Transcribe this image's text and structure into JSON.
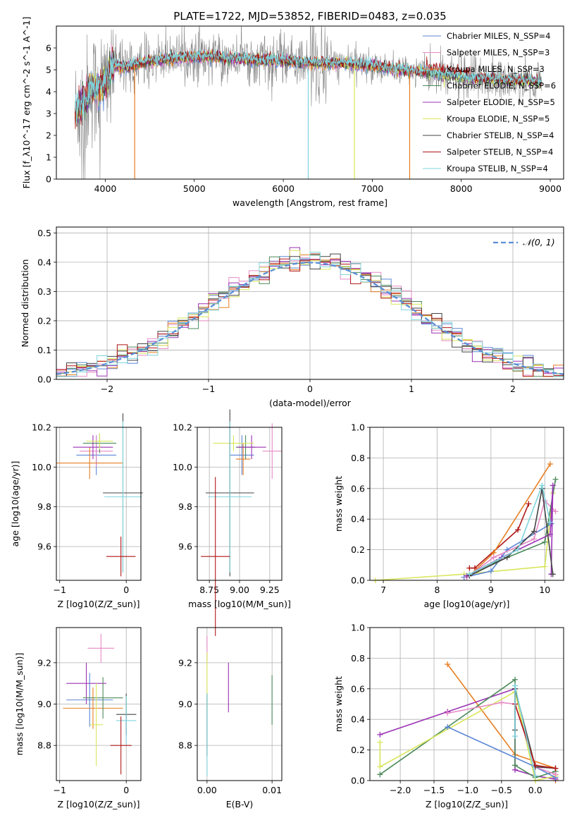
{
  "figure_title": "PLATE=1722, MJD=53852, FIBERID=0483, z=0.035",
  "colors": {
    "chabrier_miles": "#5b86d6",
    "salpeter_miles": "#e68ac5",
    "kroupa_miles": "#e67e22",
    "chabrier_elodie": "#4c8a5a",
    "salpeter_elodie": "#9b32b4",
    "kroupa_elodie": "#d8e65a",
    "chabrier_stelib": "#444444",
    "salpeter_stelib": "#b01515",
    "kroupa_stelib": "#7fd4dc",
    "data": "#888888",
    "gaussian": "#5b8fd6"
  },
  "chart_data": [
    {
      "type": "line",
      "xlabel": "wavelength [Angstrom, rest frame]",
      "ylabel": "Flux [f_λ10^-17 erg cm^-2 s^-1 A^-1]",
      "xlim": [
        3450,
        9150
      ],
      "ylim": [
        0,
        7
      ],
      "x_ticks": [
        "4000",
        "5000",
        "6000",
        "7000",
        "8000",
        "9000"
      ],
      "y_ticks": [
        "0",
        "1",
        "2",
        "3",
        "4",
        "5",
        "6"
      ],
      "grid": false,
      "legend_position": "top-right",
      "legend": [
        {
          "label": "Chabrier MILES, N_SSP=4",
          "color_key": "chabrier_miles"
        },
        {
          "label": "Salpeter MILES, N_SSP=3",
          "color_key": "salpeter_miles"
        },
        {
          "label": "Kroupa MILES, N_SSP=3",
          "color_key": "kroupa_miles"
        },
        {
          "label": "Chabrier ELODIE, N_SSP=6",
          "color_key": "chabrier_elodie"
        },
        {
          "label": "Salpeter ELODIE, N_SSP=5",
          "color_key": "salpeter_elodie"
        },
        {
          "label": "Kroupa ELODIE, N_SSP=5",
          "color_key": "kroupa_elodie"
        },
        {
          "label": "Chabrier STELIB, N_SSP=4",
          "color_key": "chabrier_stelib"
        },
        {
          "label": "Salpeter STELIB, N_SSP=4",
          "color_key": "salpeter_stelib"
        },
        {
          "label": "Kroupa STELIB, N_SSP=4",
          "color_key": "kroupa_stelib"
        }
      ],
      "continuum": {
        "x": [
          3650,
          3700,
          3750,
          3800,
          3850,
          3900,
          3950,
          4000,
          4050,
          4100,
          4200,
          4300,
          4400,
          4500,
          4700,
          5000,
          5200,
          5500,
          5800,
          6000,
          6300,
          6600,
          7000,
          7300,
          7500,
          7700,
          7900,
          8100,
          8300,
          8500,
          8700,
          8900
        ],
        "y": [
          2.9,
          3.2,
          3.5,
          3.8,
          4.2,
          4.1,
          4.3,
          4.4,
          5.0,
          5.2,
          5.1,
          5.2,
          5.3,
          5.4,
          5.5,
          5.6,
          5.6,
          5.5,
          5.4,
          5.4,
          5.3,
          5.3,
          5.2,
          5.0,
          4.9,
          4.8,
          4.7,
          4.6,
          4.6,
          4.5,
          4.5,
          4.4
        ]
      },
      "model_gaps": [
        {
          "series": "kroupa_stelib",
          "x": 6280
        },
        {
          "series": "kroupa_elodie",
          "x": 6800
        },
        {
          "series": "kroupa_miles",
          "x": 7420
        },
        {
          "series": "kroupa_miles",
          "x": 4330
        }
      ]
    },
    {
      "type": "bar",
      "xlabel": "(data-model)/error",
      "ylabel": "Normed distribution",
      "xlim": [
        -2.5,
        2.5
      ],
      "ylim": [
        0,
        0.52
      ],
      "x_ticks": [
        "−2",
        "−1",
        "0",
        "1",
        "2"
      ],
      "y_ticks": [
        "0.0",
        "0.1",
        "0.2",
        "0.3",
        "0.4",
        "0.5"
      ],
      "grid": true,
      "legend_position": "top-right",
      "legend": [
        {
          "label": "𝒩(0, 1)",
          "color_key": "gaussian"
        }
      ],
      "bin_width": 0.1
    },
    {
      "type": "scatter",
      "xlabel": "Z [log10(Z/Z_sun)]",
      "ylabel": "age  [log10(age/yr)]",
      "xlim": [
        -1.05,
        0.22
      ],
      "ylim": [
        9.43,
        10.2
      ],
      "x_ticks": [
        "−1",
        "0"
      ],
      "y_ticks": [
        "9.6",
        "9.8",
        "10.0",
        "10.2"
      ],
      "grid": true,
      "errorbars": [
        {
          "key": "chabrier_miles",
          "x": -0.45,
          "xerr": 0.3,
          "y": 10.06,
          "yerr": 0.1
        },
        {
          "key": "salpeter_miles",
          "x": -0.45,
          "xerr": 0.25,
          "y": 10.08,
          "yerr": 0.08
        },
        {
          "key": "kroupa_miles",
          "x": -0.55,
          "xerr": 0.5,
          "y": 10.02,
          "yerr": 0.08
        },
        {
          "key": "chabrier_elodie",
          "x": -0.4,
          "xerr": 0.25,
          "y": 10.12,
          "yerr": 0.05
        },
        {
          "key": "salpeter_elodie",
          "x": -0.5,
          "xerr": 0.3,
          "y": 10.1,
          "yerr": 0.06
        },
        {
          "key": "kroupa_elodie",
          "x": -0.4,
          "xerr": 0.2,
          "y": 10.13,
          "yerr": 0.04
        },
        {
          "key": "chabrier_stelib",
          "x": -0.05,
          "xerr": 0.3,
          "y": 9.87,
          "yerr": 0.4
        },
        {
          "key": "kroupa_stelib",
          "x": -0.05,
          "xerr": 0.28,
          "y": 9.85,
          "yerr": 0.38
        },
        {
          "key": "salpeter_stelib",
          "x": -0.08,
          "xerr": 0.22,
          "y": 9.55,
          "yerr": 0.1
        }
      ]
    },
    {
      "type": "scatter",
      "xlabel": "mass [log10(M/M_sun)]",
      "ylabel": "",
      "xlim": [
        8.65,
        9.35
      ],
      "ylim": [
        9.43,
        10.2
      ],
      "x_ticks": [
        "8.75",
        "9.00",
        "9.25"
      ],
      "y_ticks": [
        "9.6",
        "9.8",
        "10.0",
        "10.2"
      ],
      "grid": true,
      "errorbars": [
        {
          "key": "chabrier_miles",
          "x": 9.02,
          "xerr": 0.1,
          "y": 10.06,
          "yerr": 0.1
        },
        {
          "key": "salpeter_miles",
          "x": 9.27,
          "xerr": 0.08,
          "y": 10.08,
          "yerr": 0.14
        },
        {
          "key": "kroupa_miles",
          "x": 9.03,
          "xerr": 0.06,
          "y": 10.04,
          "yerr": 0.08
        },
        {
          "key": "chabrier_elodie",
          "x": 9.05,
          "xerr": 0.08,
          "y": 10.1,
          "yerr": 0.06
        },
        {
          "key": "salpeter_elodie",
          "x": 9.1,
          "xerr": 0.12,
          "y": 10.1,
          "yerr": 0.06
        },
        {
          "key": "kroupa_elodie",
          "x": 8.95,
          "xerr": 0.17,
          "y": 10.12,
          "yerr": 0.04
        },
        {
          "key": "chabrier_stelib",
          "x": 8.92,
          "xerr": 0.2,
          "y": 9.87,
          "yerr": 0.42
        },
        {
          "key": "kroupa_stelib",
          "x": 8.92,
          "xerr": 0.18,
          "y": 9.85,
          "yerr": 0.38
        },
        {
          "key": "salpeter_stelib",
          "x": 8.8,
          "xerr": 0.12,
          "y": 9.55,
          "yerr": 0.4
        }
      ]
    },
    {
      "type": "line",
      "xlabel": "age  [log10(age/yr)]",
      "ylabel": "mass weight",
      "xlim": [
        6.75,
        10.35
      ],
      "ylim": [
        0,
        1
      ],
      "x_ticks": [
        "7",
        "8",
        "9",
        "10"
      ],
      "y_ticks": [
        "0.0",
        "0.2",
        "0.4",
        "0.6",
        "0.8",
        "1.0"
      ],
      "grid": true,
      "series": [
        {
          "key": "kroupa_elodie",
          "x": [
            6.85,
            8.5,
            10.0,
            10.15
          ],
          "y": [
            0.0,
            0.04,
            0.09,
            0.57
          ]
        },
        {
          "key": "salpeter_stelib",
          "x": [
            8.6,
            8.7,
            9.5,
            9.7
          ],
          "y": [
            0.08,
            0.08,
            0.33,
            0.5
          ]
        },
        {
          "key": "chabrier_miles",
          "x": [
            8.5,
            9.0,
            9.3,
            10.12
          ],
          "y": [
            0.02,
            0.06,
            0.2,
            0.37
          ]
        },
        {
          "key": "kroupa_miles",
          "x": [
            8.6,
            9.05,
            10.1
          ],
          "y": [
            0.03,
            0.18,
            0.76
          ]
        },
        {
          "key": "salpeter_miles",
          "x": [
            8.55,
            9.05,
            9.8,
            10.0,
            10.2
          ],
          "y": [
            0.02,
            0.15,
            0.27,
            0.52,
            0.45
          ]
        },
        {
          "key": "chabrier_elodie",
          "x": [
            8.6,
            9.1,
            10.0,
            10.2
          ],
          "y": [
            0.03,
            0.12,
            0.25,
            0.66
          ]
        },
        {
          "key": "salpeter_elodie",
          "x": [
            8.55,
            9.2,
            10.1,
            10.15,
            10.12
          ],
          "y": [
            0.03,
            0.15,
            0.3,
            0.62,
            0.04
          ]
        },
        {
          "key": "chabrier_stelib",
          "x": [
            8.6,
            9.3,
            9.8,
            9.95,
            10.15
          ],
          "y": [
            0.03,
            0.15,
            0.32,
            0.6,
            0.04
          ]
        },
        {
          "key": "kroupa_stelib",
          "x": [
            8.6,
            9.5,
            9.95,
            10.1
          ],
          "y": [
            0.04,
            0.2,
            0.62,
            0.38
          ]
        }
      ]
    },
    {
      "type": "scatter",
      "xlabel": "Z [log10(Z/Z_sun)]",
      "ylabel": "mass [log10(M/M_sun)]",
      "xlim": [
        -1.05,
        0.22
      ],
      "ylim": [
        8.63,
        9.37
      ],
      "x_ticks": [
        "−1",
        "0"
      ],
      "y_ticks": [
        "8.8",
        "9.0",
        "9.2"
      ],
      "grid": true,
      "errorbars": [
        {
          "key": "salpeter_miles",
          "x": -0.38,
          "xerr": 0.2,
          "y": 9.27,
          "yerr": 0.07
        },
        {
          "key": "salpeter_elodie",
          "x": -0.6,
          "xerr": 0.3,
          "y": 9.1,
          "yerr": 0.1
        },
        {
          "key": "chabrier_miles",
          "x": -0.55,
          "xerr": 0.35,
          "y": 9.02,
          "yerr": 0.13
        },
        {
          "key": "kroupa_miles",
          "x": -0.5,
          "xerr": 0.45,
          "y": 8.98,
          "yerr": 0.1
        },
        {
          "key": "chabrier_elodie",
          "x": -0.35,
          "xerr": 0.3,
          "y": 9.03,
          "yerr": 0.1
        },
        {
          "key": "kroupa_elodie",
          "x": -0.45,
          "xerr": 0.1,
          "y": 8.9,
          "yerr": 0.2
        },
        {
          "key": "chabrier_stelib",
          "x": 0.0,
          "xerr": 0.15,
          "y": 8.95,
          "yerr": 0.1
        },
        {
          "key": "kroupa_stelib",
          "x": 0.0,
          "xerr": 0.15,
          "y": 8.92,
          "yerr": 0.12
        },
        {
          "key": "salpeter_stelib",
          "x": -0.08,
          "xerr": 0.16,
          "y": 8.8,
          "yerr": 0.14
        }
      ]
    },
    {
      "type": "scatter",
      "xlabel": "E(B-V)",
      "ylabel": "",
      "xlim": [
        -0.0015,
        0.0115
      ],
      "ylim": [
        8.63,
        9.37
      ],
      "x_ticks": [
        "0.00",
        "0.01"
      ],
      "y_ticks": [
        "8.8",
        "9.0",
        "9.2"
      ],
      "grid": true,
      "errorbars": [
        {
          "key": "salpeter_miles",
          "x": 0.0,
          "y": 9.27,
          "yerr": 0.06
        },
        {
          "key": "kroupa_elodie",
          "x": 0.0,
          "y": 9.1,
          "yerr": 0.15
        },
        {
          "key": "chabrier_stelib",
          "x": 0.0,
          "y": 8.9,
          "yerr": 0.15
        },
        {
          "key": "kroupa_stelib",
          "x": 0.0,
          "y": 8.85,
          "yerr": 0.2
        },
        {
          "key": "salpeter_elodie",
          "x": 0.0033,
          "y": 9.08,
          "yerr": 0.12
        },
        {
          "key": "chabrier_elodie",
          "x": 0.01,
          "y": 9.02,
          "yerr": 0.12
        }
      ]
    },
    {
      "type": "line",
      "xlabel": "Z [log10(Z/Z_sun)]",
      "ylabel": "mass weight",
      "xlim": [
        -2.45,
        0.42
      ],
      "ylim": [
        0,
        1
      ],
      "x_ticks": [
        "−2.0",
        "−1.5",
        "−1.0",
        "−0.5",
        "0.0"
      ],
      "y_ticks": [
        "0.0",
        "0.2",
        "0.4",
        "0.6",
        "0.8",
        "1.0"
      ],
      "grid": true,
      "series": [
        {
          "key": "kroupa_miles",
          "x": [
            -1.3,
            -0.3,
            0.3,
            0.3
          ],
          "y": [
            0.76,
            0.17,
            0.08,
            0.0
          ]
        },
        {
          "key": "salpeter_elodie",
          "x": [
            -2.3,
            -1.3,
            -0.3,
            -0.3,
            0.0,
            0.3
          ],
          "y": [
            0.3,
            0.45,
            0.6,
            0.07,
            0.03,
            0.01
          ]
        },
        {
          "key": "chabrier_elodie",
          "x": [
            -2.3,
            -0.3,
            -0.3,
            0.0,
            0.3
          ],
          "y": [
            0.04,
            0.66,
            0.1,
            0.02,
            0.06
          ]
        },
        {
          "key": "kroupa_elodie",
          "x": [
            -2.3,
            -2.3,
            -0.3,
            0.0,
            0.3
          ],
          "y": [
            0.25,
            0.09,
            0.58,
            0.0,
            0.03
          ]
        },
        {
          "key": "chabrier_miles",
          "x": [
            -1.3,
            0.0,
            0.3
          ],
          "y": [
            0.35,
            0.09,
            0.02
          ]
        },
        {
          "key": "salpeter_miles",
          "x": [
            -1.3,
            -0.5,
            -0.3,
            0.0,
            0.3
          ],
          "y": [
            0.44,
            0.51,
            0.5,
            0.09,
            0.04
          ]
        },
        {
          "key": "chabrier_stelib",
          "x": [
            -0.3,
            -0.3,
            0.0,
            0.3
          ],
          "y": [
            0.33,
            0.6,
            0.09,
            0.08
          ]
        },
        {
          "key": "salpeter_stelib",
          "x": [
            -0.3,
            0.0,
            0.3
          ],
          "y": [
            0.5,
            0.1,
            0.08
          ]
        },
        {
          "key": "kroupa_stelib",
          "x": [
            -0.3,
            -0.3,
            0.0
          ],
          "y": [
            0.29,
            0.62,
            0.03
          ]
        }
      ]
    }
  ]
}
